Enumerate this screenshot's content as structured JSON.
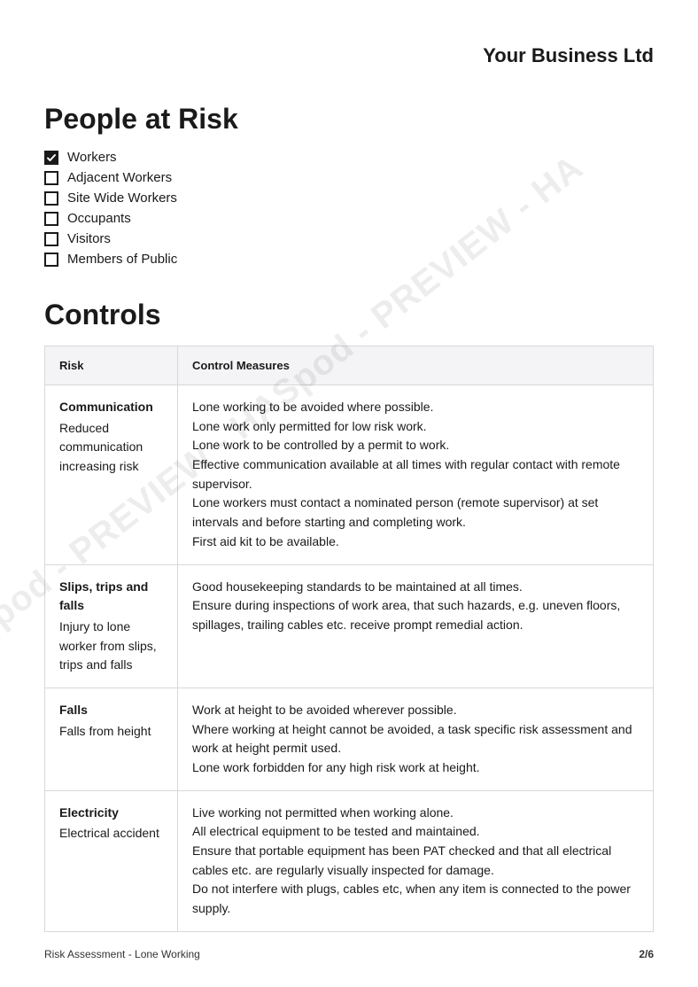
{
  "company_name": "Your Business Ltd",
  "section1_title": "People at Risk",
  "people_at_risk": [
    {
      "label": "Workers",
      "checked": true
    },
    {
      "label": "Adjacent Workers",
      "checked": false
    },
    {
      "label": "Site Wide Workers",
      "checked": false
    },
    {
      "label": "Occupants",
      "checked": false
    },
    {
      "label": "Visitors",
      "checked": false
    },
    {
      "label": "Members of Public",
      "checked": false
    }
  ],
  "section2_title": "Controls",
  "table": {
    "col1_header": "Risk",
    "col2_header": "Control Measures",
    "rows": [
      {
        "risk_title": "Communication",
        "risk_desc": "Reduced communication increasing risk",
        "measures": "Lone working to be avoided where possible.\nLone work only permitted for low risk work.\nLone work to be controlled by a permit to work.\nEffective communication available at all times with regular contact with remote supervisor.\nLone workers must contact a nominated person (remote supervisor) at set intervals and before starting and completing work.\nFirst aid kit to be available."
      },
      {
        "risk_title": "Slips, trips and falls",
        "risk_desc": "Injury to lone worker from slips, trips and falls",
        "measures": "Good housekeeping standards to be maintained at all times.\nEnsure during inspections of work area, that such hazards, e.g. uneven floors, spillages, trailing cables etc. receive prompt remedial action."
      },
      {
        "risk_title": "Falls",
        "risk_desc": "Falls from height",
        "measures": "Work at height to be avoided wherever possible.\nWhere working at height cannot be avoided, a task specific risk assessment and work at height permit used.\nLone work forbidden for any high risk work at height."
      },
      {
        "risk_title": "Electricity",
        "risk_desc": "Electrical accident",
        "measures": "Live working not permitted when working alone.\nAll electrical equipment to be tested and maintained.\nEnsure that portable equipment has been PAT checked and that all electrical cables etc. are regularly visually inspected for damage.\nDo not interfere with plugs, cables etc, when any item is connected to the power supply."
      }
    ]
  },
  "footer_left": "Risk Assessment - Lone Working",
  "footer_right": "2/6",
  "watermark_text": "d - PREVIEW - HASpod - PREVIEW - HASpod - PREVIEW - HA"
}
